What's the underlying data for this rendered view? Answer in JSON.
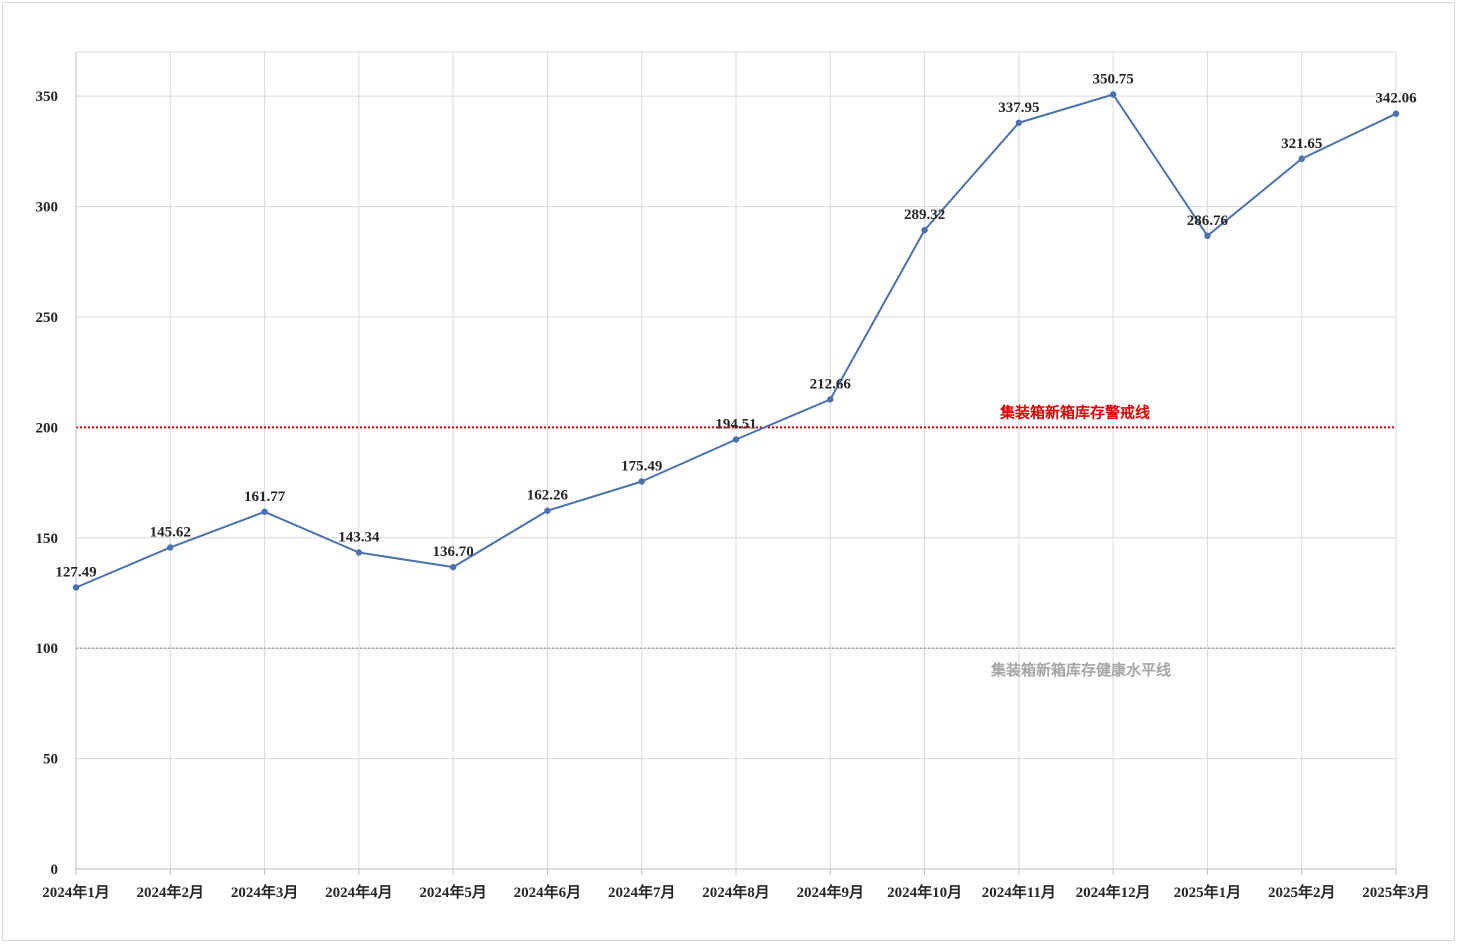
{
  "chart_data": {
    "type": "line",
    "categories": [
      "2024年1月",
      "2024年2月",
      "2024年3月",
      "2024年4月",
      "2024年5月",
      "2024年6月",
      "2024年7月",
      "2024年8月",
      "2024年9月",
      "2024年10月",
      "2024年11月",
      "2024年12月",
      "2025年1月",
      "2025年2月",
      "2025年3月"
    ],
    "series": [
      {
        "values": [
          127.49,
          145.62,
          161.77,
          143.34,
          136.7,
          162.26,
          175.49,
          194.51,
          212.66,
          289.32,
          337.95,
          350.75,
          286.76,
          321.65,
          342.06
        ],
        "labels": [
          "127.49",
          "145.62",
          "161.77",
          "143.34",
          "136.70",
          "162.26",
          "175.49",
          "194.51",
          "212.66",
          "289.32",
          "337.95",
          "350.75",
          "286.76",
          "321.65",
          "342.06"
        ],
        "color": "#4a72b0"
      }
    ],
    "reference_lines": [
      {
        "value": 200,
        "label": "集装箱新箱库存警戒线",
        "color": "#e00000",
        "style": "dotted"
      },
      {
        "value": 100,
        "label": "集装箱新箱库存健康水平线",
        "color": "#a6a6a6",
        "style": "dotted"
      }
    ],
    "yticks": [
      "0",
      "50",
      "100",
      "150",
      "200",
      "250",
      "300",
      "350"
    ],
    "ylim": [
      0,
      370
    ],
    "grid": true,
    "legend": "none"
  }
}
